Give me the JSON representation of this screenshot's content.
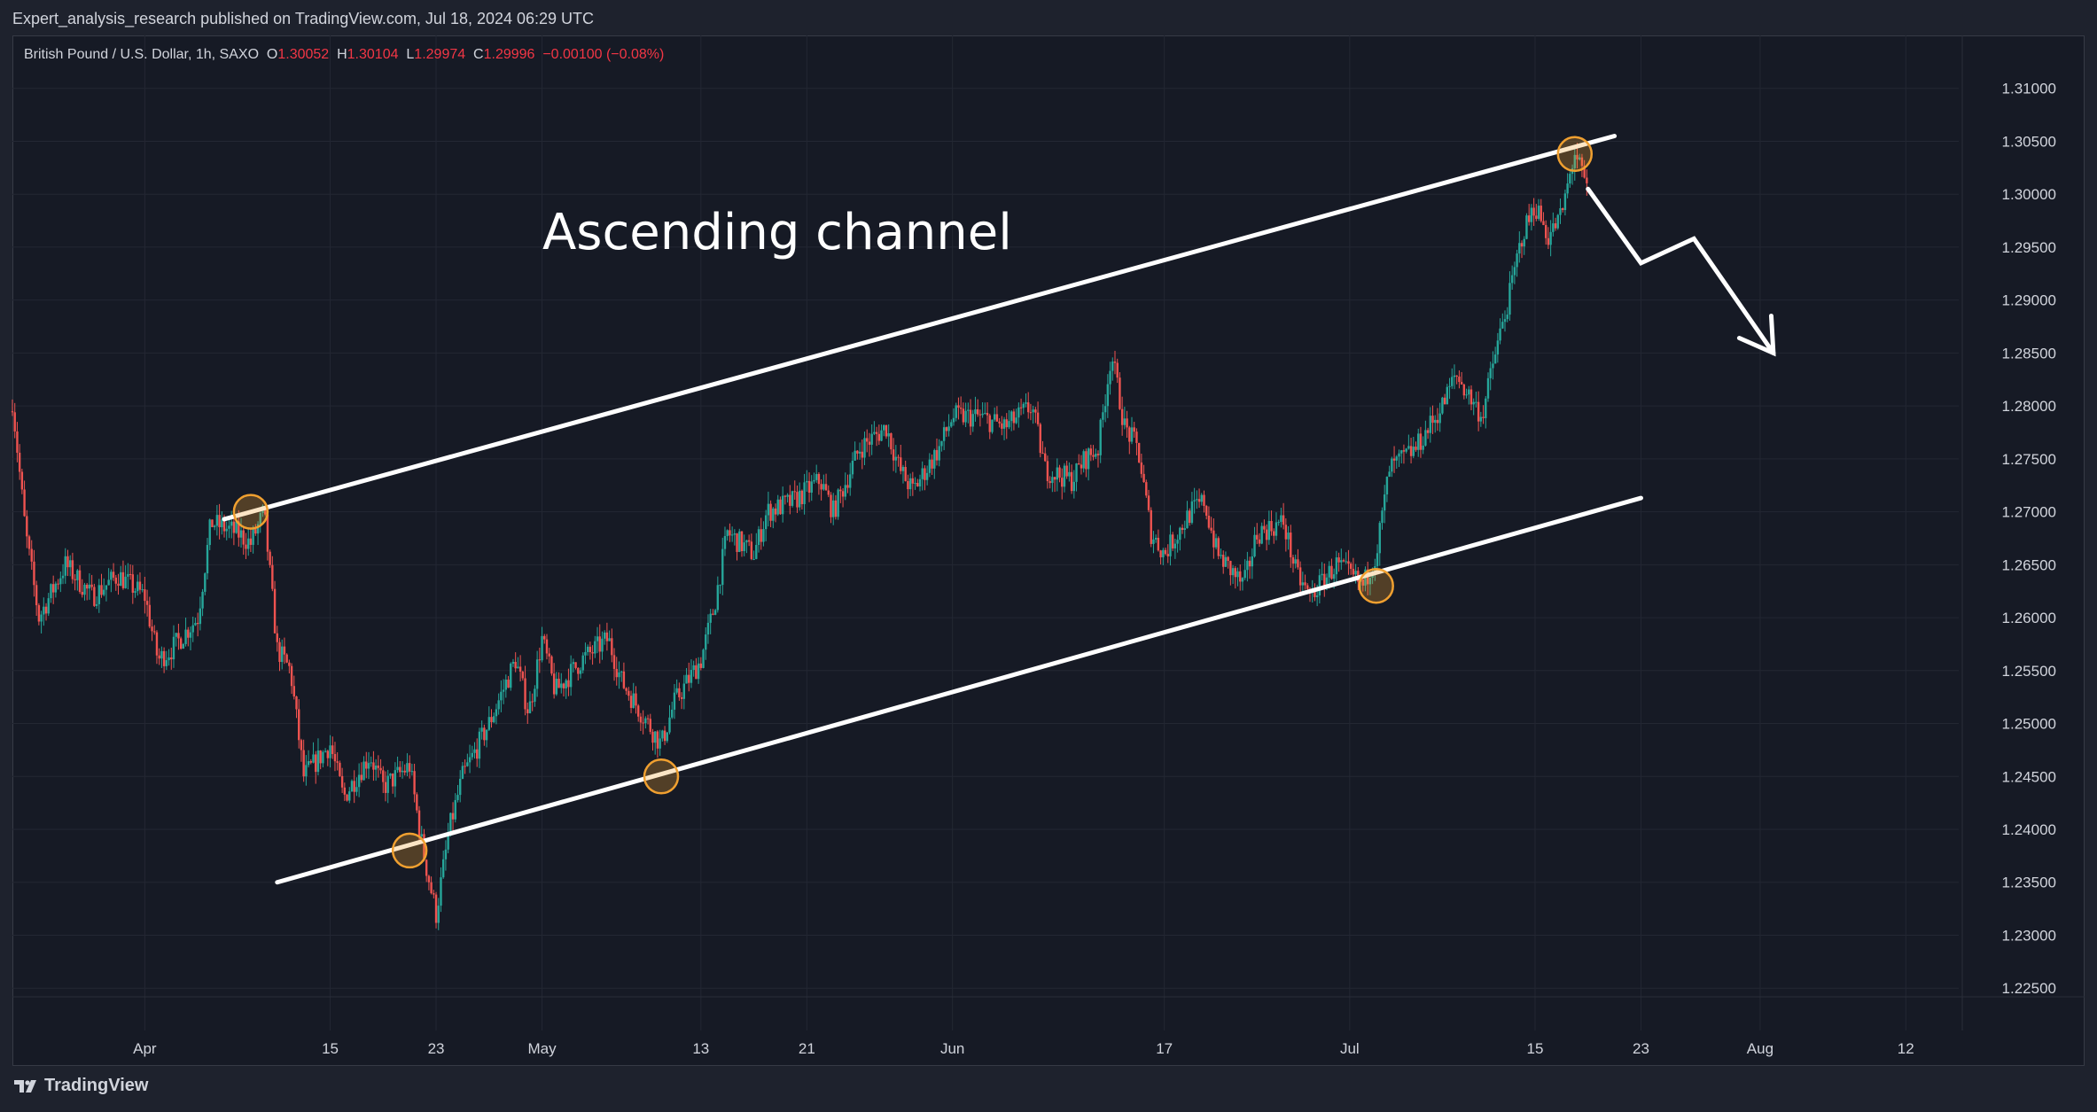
{
  "header": {
    "attribution": "Expert_analysis_research published on TradingView.com, Jul 18, 2024 06:29 UTC"
  },
  "legend": {
    "symbol": "British Pound / U.S. Dollar, 1h, SAXO",
    "o_label": "O",
    "o_value": "1.30052",
    "h_label": "H",
    "h_value": "1.30104",
    "l_label": "L",
    "l_value": "1.29974",
    "c_label": "C",
    "c_value": "1.29996",
    "change": "−0.00100 (−0.08%)"
  },
  "footer": {
    "brand": "TradingView"
  },
  "colors": {
    "background": "#161a25",
    "up": "#26a69a",
    "down": "#ef5350",
    "annotation": "#ffffff",
    "touch_marker": "#f0a030"
  },
  "chart_data": {
    "type": "candlestick",
    "symbol": "GBPUSD",
    "interval": "1h",
    "grid": true,
    "y_axis": {
      "range": [
        1.221,
        1.315
      ],
      "ticks": [
        "1.31000",
        "1.30500",
        "1.30000",
        "1.29500",
        "1.29000",
        "1.28500",
        "1.28000",
        "1.27500",
        "1.27000",
        "1.26500",
        "1.26000",
        "1.25500",
        "1.25000",
        "1.24500",
        "1.24000",
        "1.23500",
        "1.23000",
        "1.22500"
      ]
    },
    "x_axis": {
      "range": [
        "2024-03-22",
        "2024-08-16"
      ],
      "ticks": [
        {
          "label": "Apr",
          "date": "2024-04-01"
        },
        {
          "label": "15",
          "date": "2024-04-15"
        },
        {
          "label": "23",
          "date": "2024-04-23"
        },
        {
          "label": "May",
          "date": "2024-05-01"
        },
        {
          "label": "13",
          "date": "2024-05-13"
        },
        {
          "label": "21",
          "date": "2024-05-21"
        },
        {
          "label": "Jun",
          "date": "2024-06-01"
        },
        {
          "label": "17",
          "date": "2024-06-17"
        },
        {
          "label": "Jul",
          "date": "2024-07-01"
        },
        {
          "label": "15",
          "date": "2024-07-15"
        },
        {
          "label": "23",
          "date": "2024-07-23"
        },
        {
          "label": "Aug",
          "date": "2024-08-01"
        },
        {
          "label": "12",
          "date": "2024-08-12"
        }
      ]
    },
    "price_path": [
      [
        "2024-03-22",
        1.2795
      ],
      [
        "2024-03-22",
        1.2805
      ],
      [
        "2024-03-23",
        1.268
      ],
      [
        "2024-03-24",
        1.26
      ],
      [
        "2024-03-26",
        1.265
      ],
      [
        "2024-03-28",
        1.262
      ],
      [
        "2024-03-30",
        1.264
      ],
      [
        "2024-04-01",
        1.262
      ],
      [
        "2024-04-02",
        1.256
      ],
      [
        "2024-04-03",
        1.257
      ],
      [
        "2024-04-05",
        1.26
      ],
      [
        "2024-04-06",
        1.269
      ],
      [
        "2024-04-08",
        1.268
      ],
      [
        "2024-04-09",
        1.267
      ],
      [
        "2024-04-10",
        1.27
      ],
      [
        "2024-04-11",
        1.257
      ],
      [
        "2024-04-12",
        1.255
      ],
      [
        "2024-04-13",
        1.245
      ],
      [
        "2024-04-15",
        1.248
      ],
      [
        "2024-04-16",
        1.243
      ],
      [
        "2024-04-18",
        1.247
      ],
      [
        "2024-04-19",
        1.244
      ],
      [
        "2024-04-21",
        1.246
      ],
      [
        "2024-04-22",
        1.238
      ],
      [
        "2024-04-23",
        1.232
      ],
      [
        "2024-04-24",
        1.24
      ],
      [
        "2024-04-25",
        1.245
      ],
      [
        "2024-04-27",
        1.25
      ],
      [
        "2024-04-29",
        1.256
      ],
      [
        "2024-04-30",
        1.251
      ],
      [
        "2024-05-01",
        1.258
      ],
      [
        "2024-05-02",
        1.253
      ],
      [
        "2024-05-04",
        1.256
      ],
      [
        "2024-05-06",
        1.258
      ],
      [
        "2024-05-07",
        1.254
      ],
      [
        "2024-05-09",
        1.25
      ],
      [
        "2024-05-10",
        1.248
      ],
      [
        "2024-05-11",
        1.252
      ],
      [
        "2024-05-13",
        1.256
      ],
      [
        "2024-05-14",
        1.261
      ],
      [
        "2024-05-15",
        1.268
      ],
      [
        "2024-05-17",
        1.266
      ],
      [
        "2024-05-18",
        1.27
      ],
      [
        "2024-05-20",
        1.271
      ],
      [
        "2024-05-22",
        1.273
      ],
      [
        "2024-05-23",
        1.27
      ],
      [
        "2024-05-25",
        1.276
      ],
      [
        "2024-05-27",
        1.278
      ],
      [
        "2024-05-28",
        1.274
      ],
      [
        "2024-05-29",
        1.272
      ],
      [
        "2024-05-31",
        1.276
      ],
      [
        "2024-06-01",
        1.279
      ],
      [
        "2024-06-03",
        1.279
      ],
      [
        "2024-06-05",
        1.278
      ],
      [
        "2024-06-07",
        1.28
      ],
      [
        "2024-06-08",
        1.274
      ],
      [
        "2024-06-10",
        1.273
      ],
      [
        "2024-06-11",
        1.275
      ],
      [
        "2024-06-12",
        1.276
      ],
      [
        "2024-06-13",
        1.285
      ],
      [
        "2024-06-14",
        1.278
      ],
      [
        "2024-06-15",
        1.276
      ],
      [
        "2024-06-16",
        1.268
      ],
      [
        "2024-06-17",
        1.266
      ],
      [
        "2024-06-19",
        1.27
      ],
      [
        "2024-06-20",
        1.271
      ],
      [
        "2024-06-21",
        1.266
      ],
      [
        "2024-06-23",
        1.263
      ],
      [
        "2024-06-24",
        1.268
      ],
      [
        "2024-06-26",
        1.269
      ],
      [
        "2024-06-27",
        1.264
      ],
      [
        "2024-06-28",
        1.262
      ],
      [
        "2024-06-30",
        1.265
      ],
      [
        "2024-07-01",
        1.264
      ],
      [
        "2024-07-02",
        1.263
      ],
      [
        "2024-07-03",
        1.266
      ],
      [
        "2024-07-04",
        1.274
      ],
      [
        "2024-07-06",
        1.276
      ],
      [
        "2024-07-08",
        1.28
      ],
      [
        "2024-07-09",
        1.283
      ],
      [
        "2024-07-10",
        1.281
      ],
      [
        "2024-07-11",
        1.279
      ],
      [
        "2024-07-12",
        1.285
      ],
      [
        "2024-07-13",
        1.29
      ],
      [
        "2024-07-14",
        1.296
      ],
      [
        "2024-07-15",
        1.299
      ],
      [
        "2024-07-16",
        1.296
      ],
      [
        "2024-07-17",
        1.298
      ],
      [
        "2024-07-18",
        1.304
      ],
      [
        "2024-07-19",
        1.3
      ]
    ],
    "annotations": {
      "title_text": "Ascending channel",
      "upper_channel": [
        [
          "2024-04-07",
          1.2693
        ],
        [
          "2024-07-21",
          1.3055
        ]
      ],
      "lower_channel": [
        [
          "2024-04-11",
          1.235
        ],
        [
          "2024-07-23",
          1.2713
        ]
      ],
      "touch_points": [
        [
          "2024-04-09",
          1.27
        ],
        [
          "2024-04-21",
          1.238
        ],
        [
          "2024-05-10",
          1.245
        ],
        [
          "2024-07-03",
          1.263
        ],
        [
          "2024-07-18",
          1.3038
        ]
      ],
      "projection_arrow": [
        [
          "2024-07-19",
          1.3005
        ],
        [
          "2024-07-23",
          1.2935
        ],
        [
          "2024-07-27",
          1.2958
        ],
        [
          "2024-08-02",
          1.285
        ]
      ]
    }
  }
}
